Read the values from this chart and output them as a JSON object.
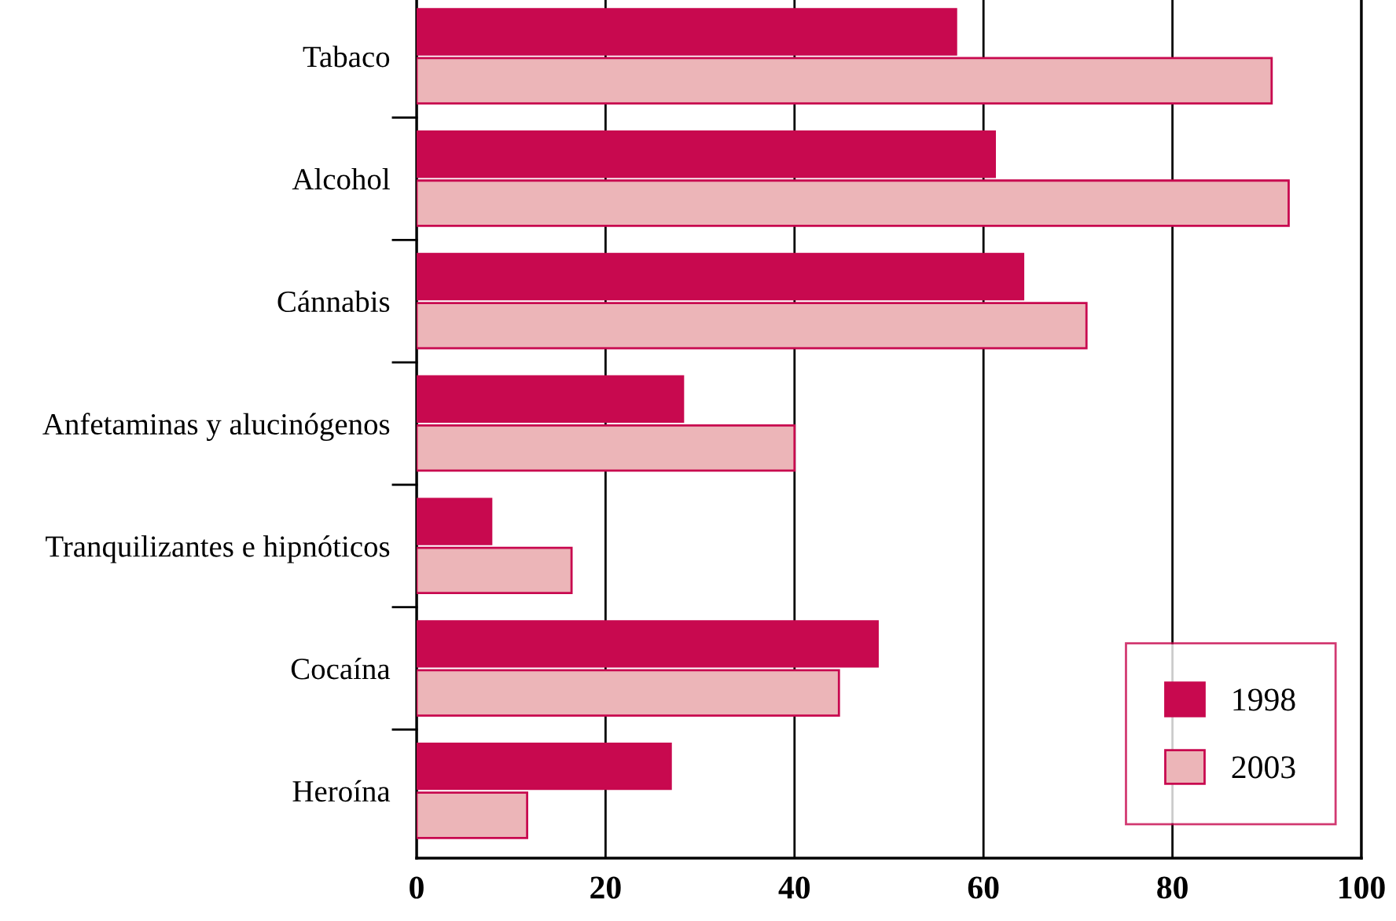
{
  "chart_data": {
    "type": "bar",
    "orientation": "horizontal",
    "categories": [
      "Tabaco",
      "Alcohol",
      "Cánnabis",
      "Anfetaminas y alucinógenos",
      "Tranquilizantes e hipnóticos",
      "Cocaína",
      "Heroína"
    ],
    "series": [
      {
        "name": "1998",
        "color": "#c8094f",
        "values": [
          57.1,
          61.2,
          64.2,
          28.2,
          7.9,
          48.8,
          26.9
        ]
      },
      {
        "name": "2003",
        "color": "#ecb5b8",
        "values": [
          90.5,
          92.3,
          70.9,
          40,
          16.4,
          44.7,
          11.7
        ]
      }
    ],
    "xlim": [
      0,
      100
    ],
    "xticks": [
      0,
      20,
      40,
      60,
      80,
      100
    ],
    "grid": "x",
    "legend": "bottom right"
  }
}
